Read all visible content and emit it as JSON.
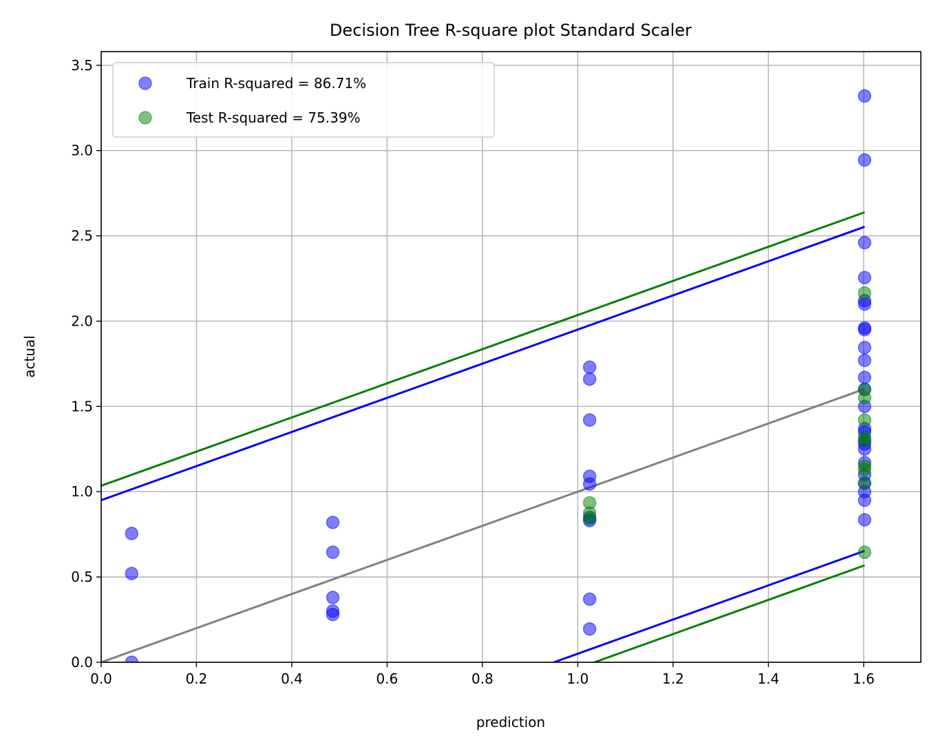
{
  "chart_data": {
    "type": "scatter",
    "title": "Decision Tree R-square plot Standard Scaler",
    "xlabel": "prediction",
    "ylabel": "actual",
    "xlim": [
      0,
      1.72
    ],
    "ylim": [
      0,
      3.58
    ],
    "xticks": [
      "0.0",
      "0.2",
      "0.4",
      "0.6",
      "0.8",
      "1.0",
      "1.2",
      "1.4",
      "1.6"
    ],
    "yticks": [
      "0.0",
      "0.5",
      "1.0",
      "1.5",
      "2.0",
      "2.5",
      "3.0",
      "3.5"
    ],
    "grid": true,
    "legend_position": "top-left",
    "series": [
      {
        "name": "Train R-squared = 86.71%",
        "color": "#0000ff",
        "points": [
          [
            0.064,
            0.0
          ],
          [
            0.064,
            0.52
          ],
          [
            0.064,
            0.755
          ],
          [
            0.486,
            0.28
          ],
          [
            0.486,
            0.3
          ],
          [
            0.486,
            0.38
          ],
          [
            0.486,
            0.645
          ],
          [
            0.486,
            0.82
          ],
          [
            1.025,
            0.195
          ],
          [
            1.025,
            0.37
          ],
          [
            1.025,
            0.83
          ],
          [
            1.025,
            0.85
          ],
          [
            1.025,
            1.045
          ],
          [
            1.025,
            1.09
          ],
          [
            1.025,
            1.42
          ],
          [
            1.025,
            1.66
          ],
          [
            1.025,
            1.73
          ],
          [
            1.602,
            0.835
          ],
          [
            1.602,
            0.95
          ],
          [
            1.602,
            1.0
          ],
          [
            1.602,
            1.05
          ],
          [
            1.602,
            1.1
          ],
          [
            1.602,
            1.17
          ],
          [
            1.602,
            1.25
          ],
          [
            1.602,
            1.28
          ],
          [
            1.602,
            1.3
          ],
          [
            1.602,
            1.35
          ],
          [
            1.602,
            1.37
          ],
          [
            1.602,
            1.5
          ],
          [
            1.602,
            1.6
          ],
          [
            1.602,
            1.67
          ],
          [
            1.602,
            1.77
          ],
          [
            1.602,
            1.845
          ],
          [
            1.602,
            1.95
          ],
          [
            1.602,
            1.96
          ],
          [
            1.602,
            2.1
          ],
          [
            1.602,
            2.12
          ],
          [
            1.602,
            2.255
          ],
          [
            1.602,
            2.46
          ],
          [
            1.602,
            2.945
          ],
          [
            1.602,
            3.32
          ]
        ]
      },
      {
        "name": "Test R-squared = 75.39%",
        "color": "#008000",
        "points": [
          [
            1.025,
            0.84
          ],
          [
            1.025,
            0.875
          ],
          [
            1.025,
            0.935
          ],
          [
            1.602,
            0.645
          ],
          [
            1.602,
            1.05
          ],
          [
            1.602,
            1.13
          ],
          [
            1.602,
            1.15
          ],
          [
            1.602,
            1.3
          ],
          [
            1.602,
            1.32
          ],
          [
            1.602,
            1.42
          ],
          [
            1.602,
            1.55
          ],
          [
            1.602,
            1.6
          ],
          [
            1.602,
            2.165
          ]
        ]
      }
    ],
    "lines": [
      {
        "role": "identity",
        "color": "#808080",
        "from": [
          0.0,
          0.0
        ],
        "to": [
          1.602,
          1.602
        ]
      },
      {
        "role": "train-upper",
        "color": "#0000ff",
        "from": [
          0.0,
          0.95
        ],
        "to": [
          1.602,
          2.553
        ]
      },
      {
        "role": "train-lower",
        "color": "#0000ff",
        "from": [
          0.95,
          0.0
        ],
        "to": [
          1.602,
          0.653
        ]
      },
      {
        "role": "test-upper",
        "color": "#008000",
        "from": [
          0.0,
          1.035
        ],
        "to": [
          1.602,
          2.638
        ]
      },
      {
        "role": "test-lower",
        "color": "#008000",
        "from": [
          1.035,
          0.0
        ],
        "to": [
          1.602,
          0.568
        ]
      }
    ]
  }
}
